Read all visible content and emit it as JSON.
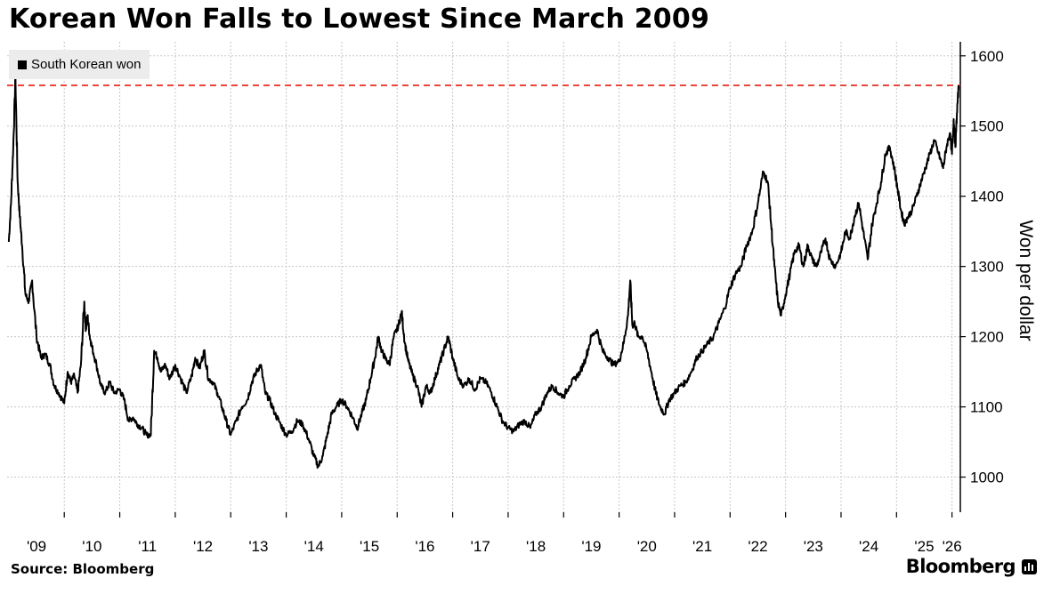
{
  "title": "Korean Won Falls to Lowest Since March 2009",
  "legend": {
    "label": "South Korean won"
  },
  "source": "Source: Bloomberg",
  "brand": "Bloomberg",
  "colors": {
    "line": "#000000",
    "reference_line": "#e8463a",
    "grid": "#c8c8c8",
    "legend_bg": "#ececec"
  },
  "chart_data": {
    "type": "line",
    "title": "Korean Won Falls to Lowest Since March 2009",
    "ylabel": "Won per dollar",
    "ylim": [
      950,
      1620
    ],
    "xlim": [
      2008.97,
      2026.15
    ],
    "yticks": [
      1000,
      1100,
      1200,
      1300,
      1400,
      1500,
      1600
    ],
    "xticks": [
      {
        "label": "'09",
        "x": 2009.5
      },
      {
        "label": "'10",
        "x": 2010.5
      },
      {
        "label": "'11",
        "x": 2011.5
      },
      {
        "label": "'12",
        "x": 2012.5
      },
      {
        "label": "'13",
        "x": 2013.5
      },
      {
        "label": "'14",
        "x": 2014.5
      },
      {
        "label": "'15",
        "x": 2015.5
      },
      {
        "label": "'16",
        "x": 2016.5
      },
      {
        "label": "'17",
        "x": 2017.5
      },
      {
        "label": "'18",
        "x": 2018.5
      },
      {
        "label": "'19",
        "x": 2019.5
      },
      {
        "label": "'20",
        "x": 2020.5
      },
      {
        "label": "'21",
        "x": 2021.5
      },
      {
        "label": "'22",
        "x": 2022.5
      },
      {
        "label": "'23",
        "x": 2023.5
      },
      {
        "label": "'24",
        "x": 2024.5
      },
      {
        "label": "'25",
        "x": 2025.5
      },
      {
        "label": "'26",
        "x": 2026.0
      }
    ],
    "year_boundaries": [
      2010,
      2011,
      2012,
      2013,
      2014,
      2015,
      2016,
      2017,
      2018,
      2019,
      2020,
      2021,
      2022,
      2023,
      2024,
      2025,
      2026
    ],
    "grid": true,
    "legend_position": "top-left",
    "reference_line": {
      "y": 1558,
      "style": "dashed"
    },
    "series": [
      {
        "name": "South Korean won",
        "x": [
          2009.0,
          2009.04,
          2009.08,
          2009.12,
          2009.16,
          2009.2,
          2009.24,
          2009.3,
          2009.36,
          2009.42,
          2009.5,
          2009.58,
          2009.66,
          2009.74,
          2009.82,
          2009.9,
          2010.0,
          2010.06,
          2010.12,
          2010.18,
          2010.24,
          2010.3,
          2010.36,
          2010.39,
          2010.42,
          2010.46,
          2010.5,
          2010.58,
          2010.66,
          2010.74,
          2010.82,
          2010.9,
          2011.0,
          2011.08,
          2011.16,
          2011.24,
          2011.32,
          2011.4,
          2011.48,
          2011.56,
          2011.62,
          2011.68,
          2011.74,
          2011.82,
          2011.9,
          2012.0,
          2012.1,
          2012.2,
          2012.3,
          2012.36,
          2012.44,
          2012.52,
          2012.6,
          2012.68,
          2012.76,
          2012.84,
          2012.92,
          2013.0,
          2013.1,
          2013.2,
          2013.3,
          2013.38,
          2013.46,
          2013.54,
          2013.62,
          2013.7,
          2013.8,
          2013.9,
          2014.0,
          2014.1,
          2014.2,
          2014.3,
          2014.4,
          2014.5,
          2014.58,
          2014.66,
          2014.74,
          2014.82,
          2014.9,
          2015.0,
          2015.1,
          2015.2,
          2015.28,
          2015.36,
          2015.44,
          2015.52,
          2015.6,
          2015.66,
          2015.72,
          2015.78,
          2015.86,
          2015.94,
          2016.02,
          2016.08,
          2016.14,
          2016.2,
          2016.28,
          2016.36,
          2016.44,
          2016.52,
          2016.6,
          2016.68,
          2016.76,
          2016.84,
          2016.92,
          2017.0,
          2017.1,
          2017.2,
          2017.3,
          2017.4,
          2017.5,
          2017.6,
          2017.7,
          2017.8,
          2017.9,
          2018.0,
          2018.1,
          2018.2,
          2018.3,
          2018.4,
          2018.5,
          2018.6,
          2018.7,
          2018.8,
          2018.9,
          2019.0,
          2019.1,
          2019.2,
          2019.3,
          2019.4,
          2019.5,
          2019.6,
          2019.7,
          2019.8,
          2019.9,
          2020.0,
          2020.08,
          2020.16,
          2020.2,
          2020.24,
          2020.28,
          2020.34,
          2020.42,
          2020.5,
          2020.58,
          2020.66,
          2020.74,
          2020.82,
          2020.9,
          2021.0,
          2021.1,
          2021.2,
          2021.3,
          2021.4,
          2021.5,
          2021.6,
          2021.7,
          2021.8,
          2021.9,
          2022.0,
          2022.1,
          2022.2,
          2022.3,
          2022.4,
          2022.5,
          2022.6,
          2022.68,
          2022.74,
          2022.8,
          2022.86,
          2022.92,
          2023.0,
          2023.08,
          2023.16,
          2023.24,
          2023.32,
          2023.4,
          2023.48,
          2023.56,
          2023.64,
          2023.72,
          2023.8,
          2023.9,
          2024.0,
          2024.08,
          2024.16,
          2024.24,
          2024.32,
          2024.4,
          2024.48,
          2024.56,
          2024.64,
          2024.72,
          2024.8,
          2024.88,
          2024.96,
          2025.02,
          2025.08,
          2025.14,
          2025.2,
          2025.28,
          2025.36,
          2025.44,
          2025.52,
          2025.6,
          2025.68,
          2025.76,
          2025.84,
          2025.9,
          2025.96,
          2026.0,
          2026.03,
          2026.06,
          2026.09,
          2026.12
        ],
        "values": [
          1335,
          1390,
          1470,
          1570,
          1420,
          1370,
          1330,
          1260,
          1250,
          1280,
          1200,
          1170,
          1175,
          1160,
          1130,
          1120,
          1105,
          1150,
          1135,
          1145,
          1120,
          1160,
          1250,
          1210,
          1230,
          1200,
          1185,
          1160,
          1130,
          1120,
          1135,
          1120,
          1125,
          1110,
          1080,
          1085,
          1075,
          1070,
          1060,
          1060,
          1180,
          1170,
          1150,
          1160,
          1140,
          1160,
          1140,
          1120,
          1145,
          1170,
          1155,
          1180,
          1140,
          1135,
          1120,
          1100,
          1080,
          1060,
          1080,
          1100,
          1110,
          1135,
          1150,
          1160,
          1120,
          1110,
          1090,
          1075,
          1060,
          1065,
          1080,
          1075,
          1055,
          1030,
          1015,
          1030,
          1060,
          1090,
          1100,
          1110,
          1100,
          1085,
          1070,
          1090,
          1110,
          1140,
          1170,
          1200,
          1180,
          1170,
          1160,
          1200,
          1215,
          1235,
          1190,
          1165,
          1145,
          1130,
          1100,
          1130,
          1120,
          1140,
          1160,
          1180,
          1200,
          1170,
          1140,
          1130,
          1140,
          1125,
          1140,
          1135,
          1120,
          1100,
          1080,
          1070,
          1065,
          1075,
          1080,
          1070,
          1090,
          1100,
          1120,
          1130,
          1120,
          1115,
          1130,
          1140,
          1150,
          1170,
          1200,
          1210,
          1180,
          1170,
          1160,
          1165,
          1190,
          1230,
          1280,
          1215,
          1220,
          1200,
          1200,
          1180,
          1150,
          1120,
          1100,
          1090,
          1110,
          1120,
          1130,
          1135,
          1150,
          1170,
          1180,
          1190,
          1200,
          1220,
          1240,
          1270,
          1290,
          1300,
          1330,
          1350,
          1390,
          1435,
          1420,
          1360,
          1300,
          1250,
          1230,
          1260,
          1290,
          1320,
          1330,
          1300,
          1330,
          1310,
          1300,
          1320,
          1340,
          1310,
          1300,
          1320,
          1350,
          1340,
          1370,
          1390,
          1350,
          1310,
          1360,
          1390,
          1420,
          1460,
          1470,
          1440,
          1410,
          1380,
          1360,
          1370,
          1380,
          1400,
          1420,
          1440,
          1460,
          1480,
          1460,
          1440,
          1470,
          1490,
          1460,
          1510,
          1470,
          1520,
          1558
        ]
      }
    ]
  }
}
